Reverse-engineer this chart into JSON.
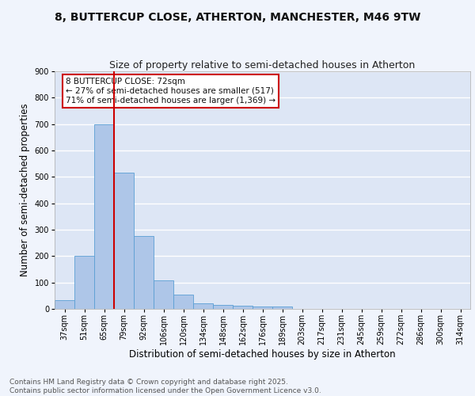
{
  "title1": "8, BUTTERCUP CLOSE, ATHERTON, MANCHESTER, M46 9TW",
  "title2": "Size of property relative to semi-detached houses in Atherton",
  "xlabel": "Distribution of semi-detached houses by size in Atherton",
  "ylabel": "Number of semi-detached properties",
  "bin_labels": [
    "37sqm",
    "51sqm",
    "65sqm",
    "79sqm",
    "92sqm",
    "106sqm",
    "120sqm",
    "134sqm",
    "148sqm",
    "162sqm",
    "176sqm",
    "189sqm",
    "203sqm",
    "217sqm",
    "231sqm",
    "245sqm",
    "259sqm",
    "272sqm",
    "286sqm",
    "300sqm",
    "314sqm"
  ],
  "bar_heights": [
    33,
    202,
    700,
    517,
    275,
    108,
    53,
    20,
    15,
    12,
    10,
    8,
    0,
    0,
    0,
    0,
    0,
    0,
    0,
    0,
    0
  ],
  "bar_color": "#aec6e8",
  "bar_edge_color": "#5a9fd4",
  "background_color": "#dde6f5",
  "fig_background_color": "#f0f4fc",
  "grid_color": "#ffffff",
  "vline_x_index": 2.5,
  "vline_color": "#cc0000",
  "annotation_text": "8 BUTTERCUP CLOSE: 72sqm\n← 27% of semi-detached houses are smaller (517)\n71% of semi-detached houses are larger (1,369) →",
  "annotation_box_color": "#ffffff",
  "annotation_box_edge": "#cc0000",
  "ylim": [
    0,
    900
  ],
  "yticks": [
    0,
    100,
    200,
    300,
    400,
    500,
    600,
    700,
    800,
    900
  ],
  "footer_text": "Contains HM Land Registry data © Crown copyright and database right 2025.\nContains public sector information licensed under the Open Government Licence v3.0.",
  "title_fontsize": 10,
  "subtitle_fontsize": 9,
  "axis_label_fontsize": 8.5,
  "tick_fontsize": 7,
  "footer_fontsize": 6.5,
  "annotation_fontsize": 7.5
}
